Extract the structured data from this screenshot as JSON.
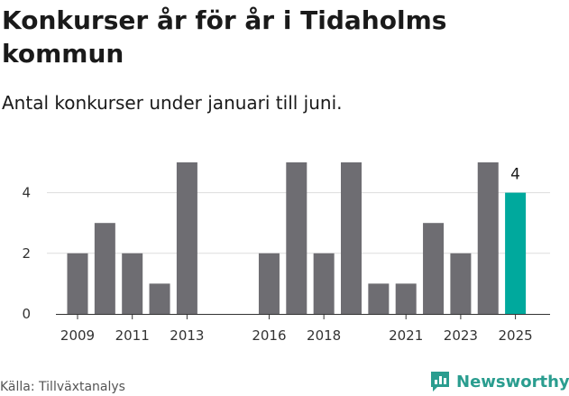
{
  "title": "Konkurser år för år i Tidaholms kommun",
  "subtitle": "Antal konkurser under januari till juni.",
  "source": "Källa: Tillväxtanalys",
  "brand": {
    "name": "Newsworthy",
    "icon": "newsworthy-logo-icon"
  },
  "colors": {
    "bar": "#6e6d72",
    "highlight": "#00a99d",
    "grid": "#dddddd"
  },
  "chart_data": {
    "type": "bar",
    "categories": [
      "2009",
      "2010",
      "2011",
      "2012",
      "2013",
      "2014",
      "2015",
      "2016",
      "2017",
      "2018",
      "2019",
      "2020",
      "2021",
      "2022",
      "2023",
      "2024",
      "2025"
    ],
    "x_tick_labels": [
      "2009",
      "2011",
      "2013",
      "2016",
      "2018",
      "2021",
      "2023",
      "2025"
    ],
    "values": [
      2,
      3,
      2,
      1,
      5,
      0,
      0,
      2,
      5,
      2,
      5,
      1,
      1,
      3,
      2,
      5,
      4
    ],
    "highlight_category": "2025",
    "highlight_label": "4",
    "y_ticks": [
      0,
      2,
      4
    ],
    "ylim": [
      0,
      5
    ],
    "grid": true
  }
}
